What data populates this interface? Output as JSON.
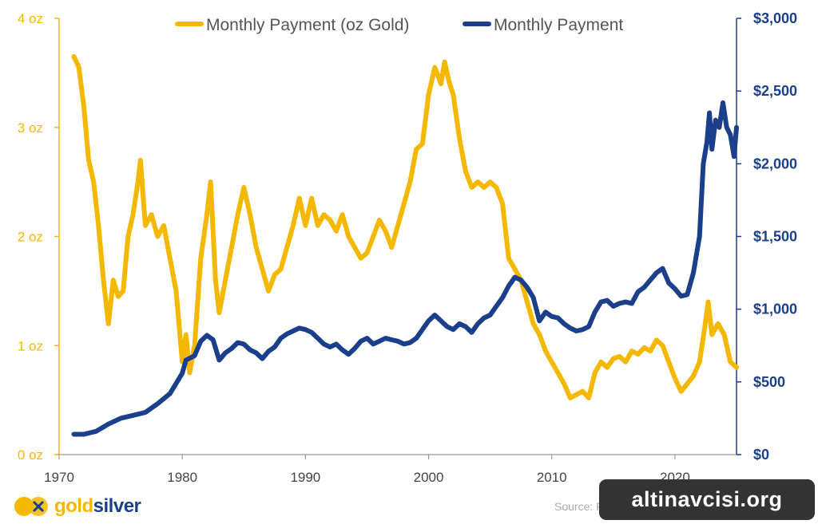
{
  "chart_data": {
    "type": "line",
    "legend_position": "top",
    "x_ticks": [
      "1970",
      "1980",
      "1990",
      "2000",
      "2010",
      "2020"
    ],
    "x_range": [
      1970,
      2025
    ],
    "y_left": {
      "ticks": [
        "0 oz",
        "1 oz",
        "2 oz",
        "3 oz",
        "4 oz"
      ],
      "range": [
        0,
        4
      ]
    },
    "y_right": {
      "ticks": [
        "$0",
        "$500",
        "$1,000",
        "$1,500",
        "$2,000",
        "$2,500",
        "$3,000"
      ],
      "range": [
        0,
        3000
      ]
    },
    "series": [
      {
        "name": "Monthly Payment (oz Gold)",
        "axis": "left",
        "color": "#F5B800",
        "points": [
          [
            1971.2,
            3.65
          ],
          [
            1971.6,
            3.55
          ],
          [
            1972.0,
            3.2
          ],
          [
            1972.4,
            2.7
          ],
          [
            1972.8,
            2.5
          ],
          [
            1973.2,
            2.1
          ],
          [
            1973.6,
            1.6
          ],
          [
            1974.0,
            1.2
          ],
          [
            1974.4,
            1.6
          ],
          [
            1974.8,
            1.45
          ],
          [
            1975.2,
            1.5
          ],
          [
            1975.6,
            2.0
          ],
          [
            1976.0,
            2.2
          ],
          [
            1976.4,
            2.5
          ],
          [
            1976.6,
            2.7
          ],
          [
            1977.0,
            2.1
          ],
          [
            1977.5,
            2.2
          ],
          [
            1978.0,
            2.0
          ],
          [
            1978.5,
            2.1
          ],
          [
            1979.0,
            1.8
          ],
          [
            1979.5,
            1.5
          ],
          [
            1980.0,
            0.85
          ],
          [
            1980.3,
            1.1
          ],
          [
            1980.6,
            0.75
          ],
          [
            1981.0,
            1.0
          ],
          [
            1981.5,
            1.8
          ],
          [
            1982.0,
            2.2
          ],
          [
            1982.3,
            2.5
          ],
          [
            1982.7,
            1.6
          ],
          [
            1983.0,
            1.3
          ],
          [
            1983.5,
            1.6
          ],
          [
            1984.0,
            1.9
          ],
          [
            1984.5,
            2.2
          ],
          [
            1985.0,
            2.45
          ],
          [
            1985.5,
            2.2
          ],
          [
            1986.0,
            1.9
          ],
          [
            1986.5,
            1.7
          ],
          [
            1987.0,
            1.5
          ],
          [
            1987.5,
            1.65
          ],
          [
            1988.0,
            1.7
          ],
          [
            1988.5,
            1.9
          ],
          [
            1989.0,
            2.1
          ],
          [
            1989.5,
            2.35
          ],
          [
            1990.0,
            2.1
          ],
          [
            1990.5,
            2.35
          ],
          [
            1991.0,
            2.1
          ],
          [
            1991.5,
            2.2
          ],
          [
            1992.0,
            2.15
          ],
          [
            1992.5,
            2.05
          ],
          [
            1993.0,
            2.2
          ],
          [
            1993.5,
            2.0
          ],
          [
            1994.0,
            1.9
          ],
          [
            1994.5,
            1.8
          ],
          [
            1995.0,
            1.85
          ],
          [
            1995.5,
            2.0
          ],
          [
            1996.0,
            2.15
          ],
          [
            1996.5,
            2.05
          ],
          [
            1997.0,
            1.9
          ],
          [
            1997.5,
            2.1
          ],
          [
            1998.0,
            2.3
          ],
          [
            1998.5,
            2.5
          ],
          [
            1999.0,
            2.8
          ],
          [
            1999.5,
            2.85
          ],
          [
            2000.0,
            3.3
          ],
          [
            2000.5,
            3.55
          ],
          [
            2001.0,
            3.4
          ],
          [
            2001.3,
            3.6
          ],
          [
            2001.7,
            3.4
          ],
          [
            2002.0,
            3.3
          ],
          [
            2002.5,
            2.9
          ],
          [
            2003.0,
            2.6
          ],
          [
            2003.5,
            2.45
          ],
          [
            2004.0,
            2.5
          ],
          [
            2004.5,
            2.45
          ],
          [
            2005.0,
            2.5
          ],
          [
            2005.5,
            2.45
          ],
          [
            2006.0,
            2.3
          ],
          [
            2006.5,
            1.8
          ],
          [
            2007.0,
            1.7
          ],
          [
            2007.5,
            1.6
          ],
          [
            2008.0,
            1.4
          ],
          [
            2008.5,
            1.2
          ],
          [
            2009.0,
            1.1
          ],
          [
            2009.5,
            0.95
          ],
          [
            2010.0,
            0.85
          ],
          [
            2010.5,
            0.75
          ],
          [
            2011.0,
            0.65
          ],
          [
            2011.5,
            0.52
          ],
          [
            2012.0,
            0.55
          ],
          [
            2012.5,
            0.58
          ],
          [
            2013.0,
            0.52
          ],
          [
            2013.5,
            0.75
          ],
          [
            2014.0,
            0.85
          ],
          [
            2014.5,
            0.8
          ],
          [
            2015.0,
            0.88
          ],
          [
            2015.5,
            0.9
          ],
          [
            2016.0,
            0.85
          ],
          [
            2016.5,
            0.95
          ],
          [
            2017.0,
            0.92
          ],
          [
            2017.5,
            0.98
          ],
          [
            2018.0,
            0.95
          ],
          [
            2018.5,
            1.05
          ],
          [
            2019.0,
            1.0
          ],
          [
            2019.5,
            0.85
          ],
          [
            2020.0,
            0.7
          ],
          [
            2020.5,
            0.58
          ],
          [
            2021.0,
            0.65
          ],
          [
            2021.5,
            0.72
          ],
          [
            2022.0,
            0.85
          ],
          [
            2022.4,
            1.15
          ],
          [
            2022.7,
            1.4
          ],
          [
            2023.0,
            1.1
          ],
          [
            2023.5,
            1.2
          ],
          [
            2024.0,
            1.1
          ],
          [
            2024.5,
            0.85
          ],
          [
            2025.0,
            0.8
          ]
        ]
      },
      {
        "name": "Monthly Payment",
        "axis": "right",
        "color": "#1B3F8B",
        "points": [
          [
            1971.2,
            140
          ],
          [
            1972.0,
            140
          ],
          [
            1973.0,
            160
          ],
          [
            1974.0,
            210
          ],
          [
            1975.0,
            250
          ],
          [
            1976.0,
            270
          ],
          [
            1977.0,
            290
          ],
          [
            1978.0,
            350
          ],
          [
            1979.0,
            420
          ],
          [
            1980.0,
            560
          ],
          [
            1980.3,
            650
          ],
          [
            1981.0,
            680
          ],
          [
            1981.5,
            780
          ],
          [
            1982.0,
            820
          ],
          [
            1982.5,
            790
          ],
          [
            1983.0,
            650
          ],
          [
            1983.5,
            700
          ],
          [
            1984.0,
            730
          ],
          [
            1984.5,
            770
          ],
          [
            1985.0,
            760
          ],
          [
            1985.5,
            720
          ],
          [
            1986.0,
            700
          ],
          [
            1986.5,
            660
          ],
          [
            1987.0,
            710
          ],
          [
            1987.5,
            740
          ],
          [
            1988.0,
            800
          ],
          [
            1988.5,
            830
          ],
          [
            1989.0,
            850
          ],
          [
            1989.5,
            870
          ],
          [
            1990.0,
            860
          ],
          [
            1990.5,
            840
          ],
          [
            1991.0,
            800
          ],
          [
            1991.5,
            760
          ],
          [
            1992.0,
            740
          ],
          [
            1992.5,
            760
          ],
          [
            1993.0,
            720
          ],
          [
            1993.5,
            690
          ],
          [
            1994.0,
            730
          ],
          [
            1994.5,
            780
          ],
          [
            1995.0,
            800
          ],
          [
            1995.5,
            760
          ],
          [
            1996.0,
            780
          ],
          [
            1996.5,
            800
          ],
          [
            1997.0,
            790
          ],
          [
            1997.5,
            780
          ],
          [
            1998.0,
            760
          ],
          [
            1998.5,
            770
          ],
          [
            1999.0,
            800
          ],
          [
            1999.5,
            860
          ],
          [
            2000.0,
            920
          ],
          [
            2000.5,
            960
          ],
          [
            2001.0,
            920
          ],
          [
            2001.5,
            880
          ],
          [
            2002.0,
            860
          ],
          [
            2002.5,
            900
          ],
          [
            2003.0,
            880
          ],
          [
            2003.5,
            840
          ],
          [
            2004.0,
            900
          ],
          [
            2004.5,
            940
          ],
          [
            2005.0,
            960
          ],
          [
            2005.5,
            1020
          ],
          [
            2006.0,
            1080
          ],
          [
            2006.5,
            1160
          ],
          [
            2007.0,
            1220
          ],
          [
            2007.5,
            1200
          ],
          [
            2008.0,
            1150
          ],
          [
            2008.5,
            1080
          ],
          [
            2009.0,
            920
          ],
          [
            2009.5,
            980
          ],
          [
            2010.0,
            950
          ],
          [
            2010.5,
            940
          ],
          [
            2011.0,
            900
          ],
          [
            2011.5,
            870
          ],
          [
            2012.0,
            850
          ],
          [
            2012.5,
            860
          ],
          [
            2013.0,
            880
          ],
          [
            2013.5,
            980
          ],
          [
            2014.0,
            1050
          ],
          [
            2014.5,
            1060
          ],
          [
            2015.0,
            1020
          ],
          [
            2015.5,
            1040
          ],
          [
            2016.0,
            1050
          ],
          [
            2016.5,
            1040
          ],
          [
            2017.0,
            1120
          ],
          [
            2017.5,
            1150
          ],
          [
            2018.0,
            1200
          ],
          [
            2018.5,
            1250
          ],
          [
            2019.0,
            1280
          ],
          [
            2019.5,
            1180
          ],
          [
            2020.0,
            1140
          ],
          [
            2020.5,
            1090
          ],
          [
            2021.0,
            1100
          ],
          [
            2021.5,
            1250
          ],
          [
            2022.0,
            1500
          ],
          [
            2022.3,
            2000
          ],
          [
            2022.6,
            2150
          ],
          [
            2022.8,
            2350
          ],
          [
            2023.0,
            2100
          ],
          [
            2023.3,
            2300
          ],
          [
            2023.6,
            2250
          ],
          [
            2023.9,
            2420
          ],
          [
            2024.2,
            2250
          ],
          [
            2024.5,
            2200
          ],
          [
            2024.8,
            2050
          ],
          [
            2025.0,
            2250
          ]
        ]
      }
    ]
  },
  "branding": {
    "logo_word_gold": "gold",
    "logo_word_silver": "silver",
    "source_text": "Source: F",
    "watermark_text": "altinavcisi.org"
  }
}
